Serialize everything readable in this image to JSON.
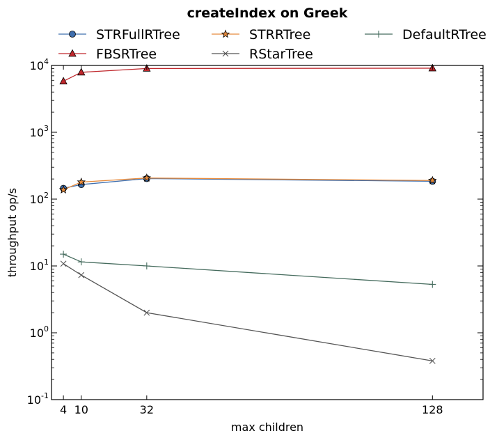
{
  "chart_data": {
    "type": "line",
    "title": "createIndex on Greek",
    "xlabel": "max children",
    "ylabel": "throughput op/s",
    "x": [
      4,
      10,
      32,
      128
    ],
    "xlim": [
      0,
      145
    ],
    "ylim": [
      0.1,
      10000
    ],
    "yscale": "log",
    "grid": false,
    "legend_position": "top",
    "x_tick_labels": [
      "4",
      "10",
      "32",
      "128"
    ],
    "y_ticks": [
      {
        "value": 0.1,
        "base": "10",
        "exp": "-1"
      },
      {
        "value": 1,
        "base": "10",
        "exp": "0"
      },
      {
        "value": 10,
        "base": "10",
        "exp": "1"
      },
      {
        "value": 100,
        "base": "10",
        "exp": "2"
      },
      {
        "value": 1000,
        "base": "10",
        "exp": "3"
      },
      {
        "value": 10000,
        "base": "10",
        "exp": "4"
      }
    ],
    "series": [
      {
        "name": "STRFullRTree",
        "color": "#3f6fae",
        "marker": "circle",
        "values": [
          145,
          165,
          203,
          185
        ]
      },
      {
        "name": "STRRTree",
        "color": "#e68a3c",
        "marker": "star",
        "values": [
          138,
          180,
          207,
          190
        ]
      },
      {
        "name": "DefaultRTree",
        "color": "#456b5d",
        "marker": "plus",
        "values": [
          15,
          11.5,
          10,
          5.3
        ]
      },
      {
        "name": "FBSRTree",
        "color": "#c0282d",
        "marker": "triangle",
        "values": [
          5800,
          7900,
          9000,
          9100
        ]
      },
      {
        "name": "RStarTree",
        "color": "#555555",
        "marker": "x",
        "values": [
          10.8,
          7.3,
          2.0,
          0.38
        ]
      }
    ]
  }
}
